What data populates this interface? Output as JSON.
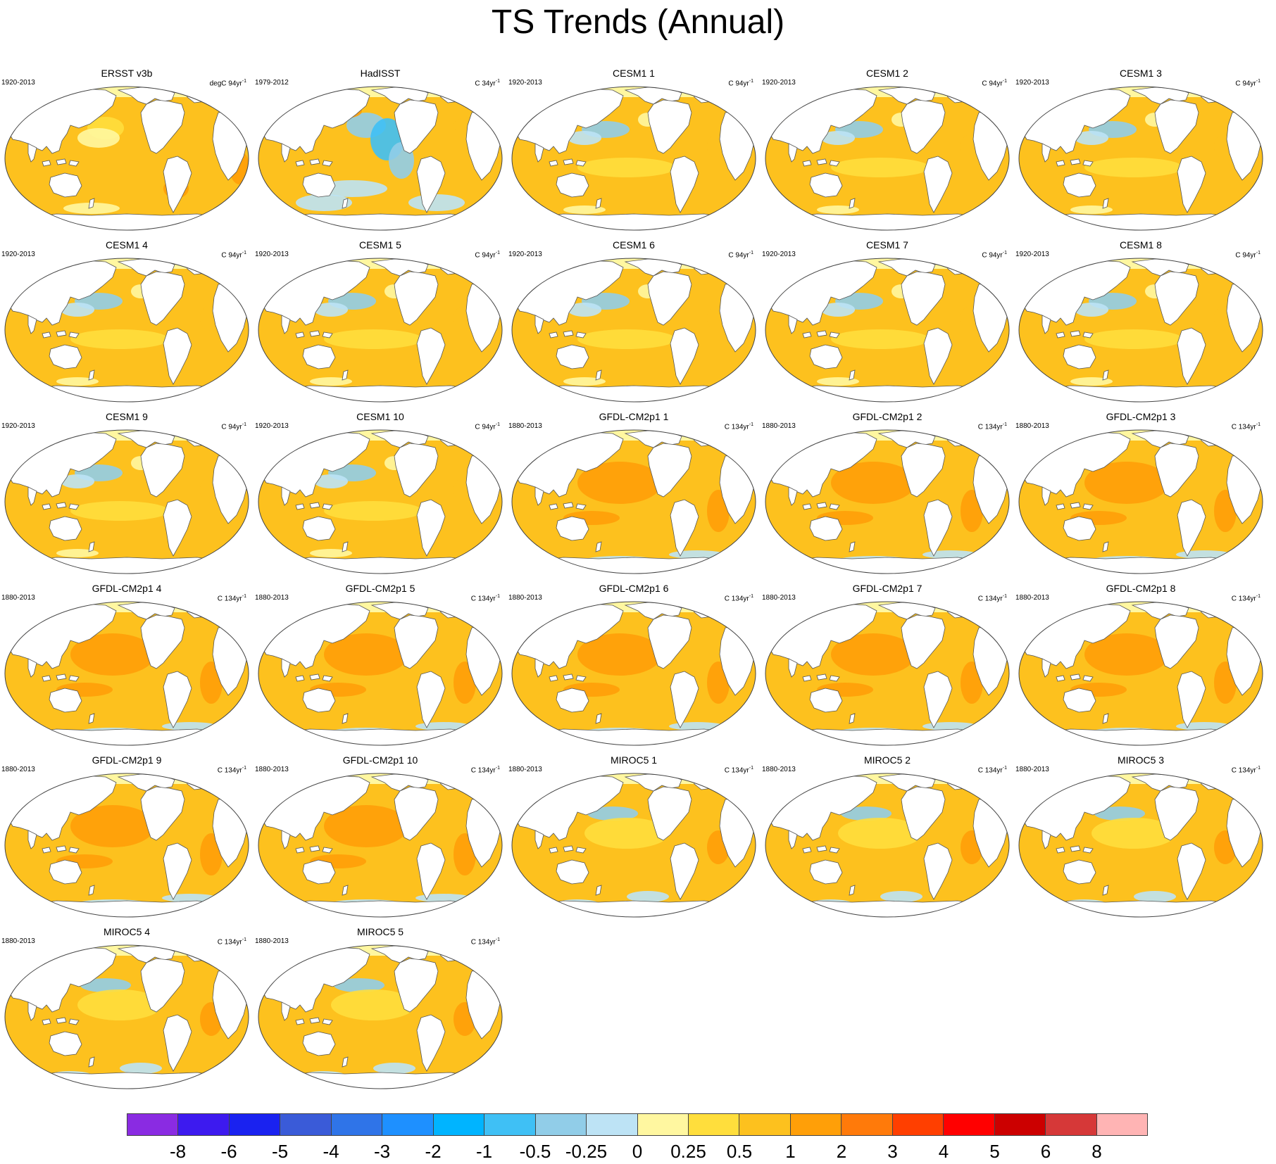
{
  "title": "TS Trends (Annual)",
  "panels": [
    {
      "title": "ERSST v3b",
      "period": "1920-2013",
      "units": "degC 94yr",
      "units_sup": "-1",
      "style": "obs1"
    },
    {
      "title": "HadISST",
      "period": "1979-2012",
      "units": "C 34yr",
      "units_sup": "-1",
      "style": "obs2"
    },
    {
      "title": "CESM1 1",
      "period": "1920-2013",
      "units": "C 94yr",
      "units_sup": "-1",
      "style": "cesm"
    },
    {
      "title": "CESM1 2",
      "period": "1920-2013",
      "units": "C 94yr",
      "units_sup": "-1",
      "style": "cesm"
    },
    {
      "title": "CESM1 3",
      "period": "1920-2013",
      "units": "C 94yr",
      "units_sup": "-1",
      "style": "cesm"
    },
    {
      "title": "CESM1 4",
      "period": "1920-2013",
      "units": "C 94yr",
      "units_sup": "-1",
      "style": "cesm"
    },
    {
      "title": "CESM1 5",
      "period": "1920-2013",
      "units": "C 94yr",
      "units_sup": "-1",
      "style": "cesm"
    },
    {
      "title": "CESM1 6",
      "period": "1920-2013",
      "units": "C 94yr",
      "units_sup": "-1",
      "style": "cesm"
    },
    {
      "title": "CESM1 7",
      "period": "1920-2013",
      "units": "C 94yr",
      "units_sup": "-1",
      "style": "cesm"
    },
    {
      "title": "CESM1 8",
      "period": "1920-2013",
      "units": "C 94yr",
      "units_sup": "-1",
      "style": "cesm"
    },
    {
      "title": "CESM1 9",
      "period": "1920-2013",
      "units": "C 94yr",
      "units_sup": "-1",
      "style": "cesm"
    },
    {
      "title": "CESM1 10",
      "period": "1920-2013",
      "units": "C 94yr",
      "units_sup": "-1",
      "style": "cesm"
    },
    {
      "title": "GFDL-CM2p1 1",
      "period": "1880-2013",
      "units": "C 134yr",
      "units_sup": "-1",
      "style": "gfdl"
    },
    {
      "title": "GFDL-CM2p1 2",
      "period": "1880-2013",
      "units": "C 134yr",
      "units_sup": "-1",
      "style": "gfdl"
    },
    {
      "title": "GFDL-CM2p1 3",
      "period": "1880-2013",
      "units": "C 134yr",
      "units_sup": "-1",
      "style": "gfdl"
    },
    {
      "title": "GFDL-CM2p1 4",
      "period": "1880-2013",
      "units": "C 134yr",
      "units_sup": "-1",
      "style": "gfdl"
    },
    {
      "title": "GFDL-CM2p1 5",
      "period": "1880-2013",
      "units": "C 134yr",
      "units_sup": "-1",
      "style": "gfdl"
    },
    {
      "title": "GFDL-CM2p1 6",
      "period": "1880-2013",
      "units": "C 134yr",
      "units_sup": "-1",
      "style": "gfdl"
    },
    {
      "title": "GFDL-CM2p1 7",
      "period": "1880-2013",
      "units": "C 134yr",
      "units_sup": "-1",
      "style": "gfdl"
    },
    {
      "title": "GFDL-CM2p1 8",
      "period": "1880-2013",
      "units": "C 134yr",
      "units_sup": "-1",
      "style": "gfdl"
    },
    {
      "title": "GFDL-CM2p1 9",
      "period": "1880-2013",
      "units": "C 134yr",
      "units_sup": "-1",
      "style": "gfdl"
    },
    {
      "title": "GFDL-CM2p1 10",
      "period": "1880-2013",
      "units": "C 134yr",
      "units_sup": "-1",
      "style": "gfdl"
    },
    {
      "title": "MIROC5 1",
      "period": "1880-2013",
      "units": "C 134yr",
      "units_sup": "-1",
      "style": "miroc"
    },
    {
      "title": "MIROC5 2",
      "period": "1880-2013",
      "units": "C 134yr",
      "units_sup": "-1",
      "style": "miroc"
    },
    {
      "title": "MIROC5 3",
      "period": "1880-2013",
      "units": "C 134yr",
      "units_sup": "-1",
      "style": "miroc"
    },
    {
      "title": "MIROC5 4",
      "period": "1880-2013",
      "units": "C 134yr",
      "units_sup": "-1",
      "style": "miroc"
    },
    {
      "title": "MIROC5 5",
      "period": "1880-2013",
      "units": "C 134yr",
      "units_sup": "-1",
      "style": "miroc"
    }
  ],
  "colorbar": {
    "colors": [
      "#8a2be2",
      "#3d1aef",
      "#1a22f0",
      "#3a5bd8",
      "#2f74e8",
      "#1e90ff",
      "#00b4ff",
      "#3fc0f5",
      "#91cde8",
      "#bde3f5",
      "#fff7a0",
      "#ffde3c",
      "#fdc11e",
      "#ff9f08",
      "#ff7a0a",
      "#ff3f00",
      "#ff0000",
      "#cc0000",
      "#d63838",
      "#ffb4b4"
    ],
    "labels": [
      "-8",
      "-6",
      "-5",
      "-4",
      "-3",
      "-2",
      "-1",
      "-0.5",
      "-0.25",
      "0",
      "0.25",
      "0.5",
      "1",
      "2",
      "3",
      "4",
      "5",
      "6",
      "8"
    ]
  }
}
